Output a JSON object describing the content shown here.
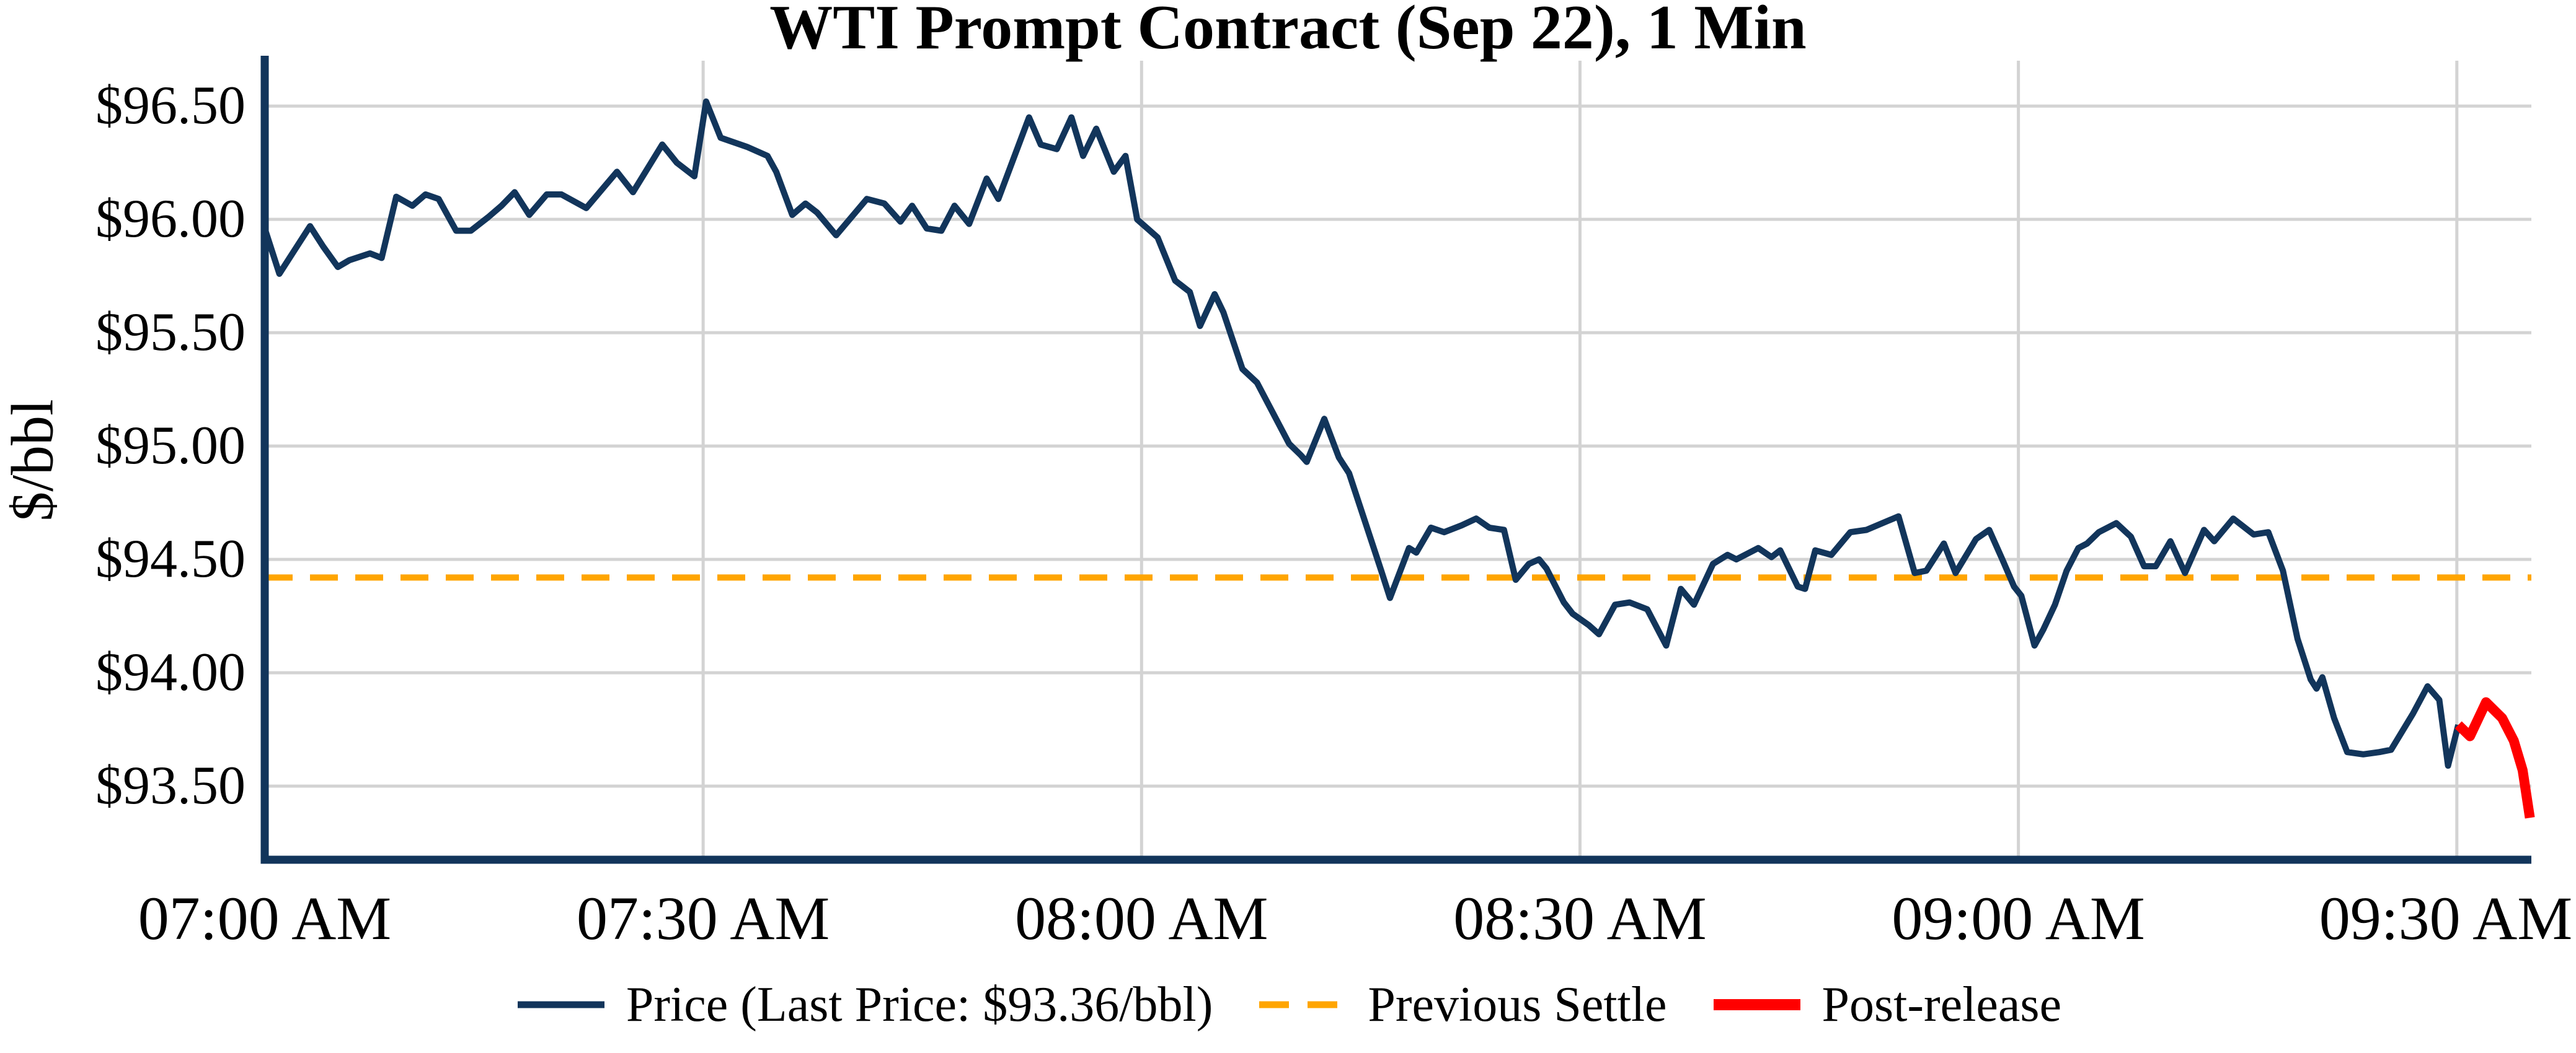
{
  "figure": {
    "title": "WTI Prompt Contract (Sep 22), 1 Min",
    "y_axis_label": "$/bbl"
  },
  "legend": {
    "items": [
      {
        "label": "Price (Last Price: $93.36/bbl)",
        "swatch": "navy-solid-line"
      },
      {
        "label": "Previous Settle",
        "swatch": "orange-dashed-line"
      },
      {
        "label": "Post-release",
        "swatch": "red-thick-line"
      }
    ]
  },
  "chart_data": {
    "type": "line",
    "title": "WTI Prompt Contract (Sep 22), 1 Min",
    "xlabel": "",
    "ylabel": "$/bbl",
    "x_unit": "minutes after 07:00 AM",
    "xlim": [
      0,
      155.1
    ],
    "ylim": [
      93.175,
      96.7
    ],
    "grid": true,
    "legend_position": "bottom-center",
    "last_price": 93.36,
    "previous_settle_value": 94.42,
    "x_ticks": [
      {
        "m": 0,
        "label": "07:00 AM"
      },
      {
        "m": 30,
        "label": "07:30 AM"
      },
      {
        "m": 60,
        "label": "08:00 AM"
      },
      {
        "m": 90,
        "label": "08:30 AM"
      },
      {
        "m": 120,
        "label": "09:00 AM"
      },
      {
        "m": 150,
        "label": "09:30 AM"
      }
    ],
    "y_ticks": [
      {
        "value": 96.5,
        "label": "$96.50"
      },
      {
        "value": 96.0,
        "label": "$96.00"
      },
      {
        "value": 95.5,
        "label": "$95.50"
      },
      {
        "value": 95.0,
        "label": "$95.00"
      },
      {
        "value": 94.5,
        "label": "$94.50"
      },
      {
        "value": 94.0,
        "label": "$94.00"
      },
      {
        "value": 93.5,
        "label": "$93.50"
      }
    ],
    "colors": {
      "price": "#12355B",
      "previous_settle": "#FFA500",
      "post_release": "#FF0000",
      "gridline": "#D3D3D3",
      "spine": "#12355B",
      "text": "#000000"
    },
    "series": [
      {
        "name": "Price",
        "type": "line",
        "color_key": "price",
        "width": 10,
        "points": [
          [
            0,
            95.96
          ],
          [
            1,
            95.76
          ],
          [
            2,
            95.86
          ],
          [
            3.1,
            95.97
          ],
          [
            4,
            95.88
          ],
          [
            5,
            95.79
          ],
          [
            5.8,
            95.82
          ],
          [
            7.2,
            95.85
          ],
          [
            8,
            95.83
          ],
          [
            9,
            96.1
          ],
          [
            10.1,
            96.06
          ],
          [
            11,
            96.11
          ],
          [
            11.9,
            96.09
          ],
          [
            12.5,
            96.02
          ],
          [
            13.1,
            95.95
          ],
          [
            14.1,
            95.95
          ],
          [
            15.3,
            96.01
          ],
          [
            16.2,
            96.06
          ],
          [
            17.1,
            96.12
          ],
          [
            18.1,
            96.02
          ],
          [
            19.3,
            96.11
          ],
          [
            20.3,
            96.11
          ],
          [
            22,
            96.05
          ],
          [
            24.1,
            96.21
          ],
          [
            25.2,
            96.12
          ],
          [
            27.2,
            96.33
          ],
          [
            28.2,
            96.25
          ],
          [
            29.4,
            96.19
          ],
          [
            30.2,
            96.52
          ],
          [
            31.2,
            96.36
          ],
          [
            33,
            96.32
          ],
          [
            34.4,
            96.28
          ],
          [
            35,
            96.21
          ],
          [
            36.1,
            96.02
          ],
          [
            37,
            96.07
          ],
          [
            37.8,
            96.03
          ],
          [
            39.1,
            95.93
          ],
          [
            41.2,
            96.09
          ],
          [
            42.4,
            96.07
          ],
          [
            43.5,
            95.99
          ],
          [
            44.3,
            96.06
          ],
          [
            45.3,
            95.96
          ],
          [
            46.3,
            95.95
          ],
          [
            47.2,
            96.06
          ],
          [
            48.2,
            95.98
          ],
          [
            49.4,
            96.18
          ],
          [
            50.2,
            96.09
          ],
          [
            52.3,
            96.45
          ],
          [
            53.1,
            96.33
          ],
          [
            54.2,
            96.31
          ],
          [
            55.2,
            96.45
          ],
          [
            56,
            96.28
          ],
          [
            56.9,
            96.4
          ],
          [
            58.1,
            96.21
          ],
          [
            58.9,
            96.28
          ],
          [
            59.7,
            96.0
          ],
          [
            60.4,
            95.96
          ],
          [
            61.1,
            95.92
          ],
          [
            62.3,
            95.73
          ],
          [
            63.3,
            95.68
          ],
          [
            64,
            95.53
          ],
          [
            65,
            95.67
          ],
          [
            65.6,
            95.59
          ],
          [
            66.9,
            95.34
          ],
          [
            67.9,
            95.28
          ],
          [
            70.1,
            95.01
          ],
          [
            70.9,
            94.96
          ],
          [
            71.3,
            94.93
          ],
          [
            72.5,
            95.12
          ],
          [
            73.5,
            94.95
          ],
          [
            74.2,
            94.88
          ],
          [
            76.4,
            94.45
          ],
          [
            77,
            94.33
          ],
          [
            78.3,
            94.55
          ],
          [
            78.8,
            94.53
          ],
          [
            79.8,
            94.64
          ],
          [
            80.7,
            94.62
          ],
          [
            81.9,
            94.65
          ],
          [
            82.9,
            94.68
          ],
          [
            83.8,
            94.64
          ],
          [
            84.8,
            94.63
          ],
          [
            85.6,
            94.41
          ],
          [
            86.5,
            94.48
          ],
          [
            87.2,
            94.5
          ],
          [
            87.7,
            94.46
          ],
          [
            88.9,
            94.31
          ],
          [
            89.5,
            94.26
          ],
          [
            90.6,
            94.21
          ],
          [
            91.3,
            94.17
          ],
          [
            92.4,
            94.3
          ],
          [
            93.4,
            94.31
          ],
          [
            94.6,
            94.28
          ],
          [
            95.9,
            94.12
          ],
          [
            96.9,
            94.37
          ],
          [
            97.8,
            94.3
          ],
          [
            99.1,
            94.48
          ],
          [
            100.1,
            94.52
          ],
          [
            100.7,
            94.5
          ],
          [
            102.2,
            94.55
          ],
          [
            103.1,
            94.51
          ],
          [
            103.7,
            94.54
          ],
          [
            104.9,
            94.38
          ],
          [
            105.4,
            94.37
          ],
          [
            106.1,
            94.54
          ],
          [
            107.2,
            94.52
          ],
          [
            108.5,
            94.62
          ],
          [
            109.6,
            94.63
          ],
          [
            111.8,
            94.69
          ],
          [
            112.9,
            94.44
          ],
          [
            113.7,
            94.45
          ],
          [
            114.9,
            94.57
          ],
          [
            115.7,
            94.44
          ],
          [
            117.1,
            94.59
          ],
          [
            118,
            94.63
          ],
          [
            118.9,
            94.5
          ],
          [
            119.7,
            94.38
          ],
          [
            120.2,
            94.34
          ],
          [
            121.1,
            94.12
          ],
          [
            121.7,
            94.19
          ],
          [
            122.5,
            94.3
          ],
          [
            123.3,
            94.45
          ],
          [
            124.1,
            94.55
          ],
          [
            124.7,
            94.57
          ],
          [
            125.5,
            94.62
          ],
          [
            126.7,
            94.66
          ],
          [
            127.7,
            94.6
          ],
          [
            128.6,
            94.47
          ],
          [
            129.4,
            94.47
          ],
          [
            130.4,
            94.58
          ],
          [
            131.4,
            94.44
          ],
          [
            132.7,
            94.63
          ],
          [
            133.4,
            94.58
          ],
          [
            134.7,
            94.68
          ],
          [
            136.1,
            94.61
          ],
          [
            137.1,
            94.62
          ],
          [
            138.1,
            94.45
          ],
          [
            139.1,
            94.15
          ],
          [
            140,
            93.97
          ],
          [
            140.4,
            93.93
          ],
          [
            140.8,
            93.98
          ],
          [
            141.6,
            93.8
          ],
          [
            142.5,
            93.65
          ],
          [
            143.6,
            93.64
          ],
          [
            144.7,
            93.65
          ],
          [
            145.5,
            93.66
          ],
          [
            147,
            93.82
          ],
          [
            148,
            93.94
          ],
          [
            148.8,
            93.88
          ],
          [
            149.4,
            93.59
          ],
          [
            150.1,
            93.77
          ]
        ]
      },
      {
        "name": "Post-release",
        "type": "line",
        "color_key": "post_release",
        "width": 16,
        "points": [
          [
            150.1,
            93.77
          ],
          [
            150.9,
            93.72
          ],
          [
            152,
            93.87
          ],
          [
            153.1,
            93.8
          ],
          [
            153.9,
            93.7
          ],
          [
            154.5,
            93.57
          ],
          [
            155,
            93.36
          ]
        ]
      },
      {
        "name": "Previous Settle",
        "type": "hline",
        "color_key": "previous_settle",
        "width": 10,
        "dash": [
          45,
          28
        ],
        "value": 94.42
      }
    ]
  }
}
